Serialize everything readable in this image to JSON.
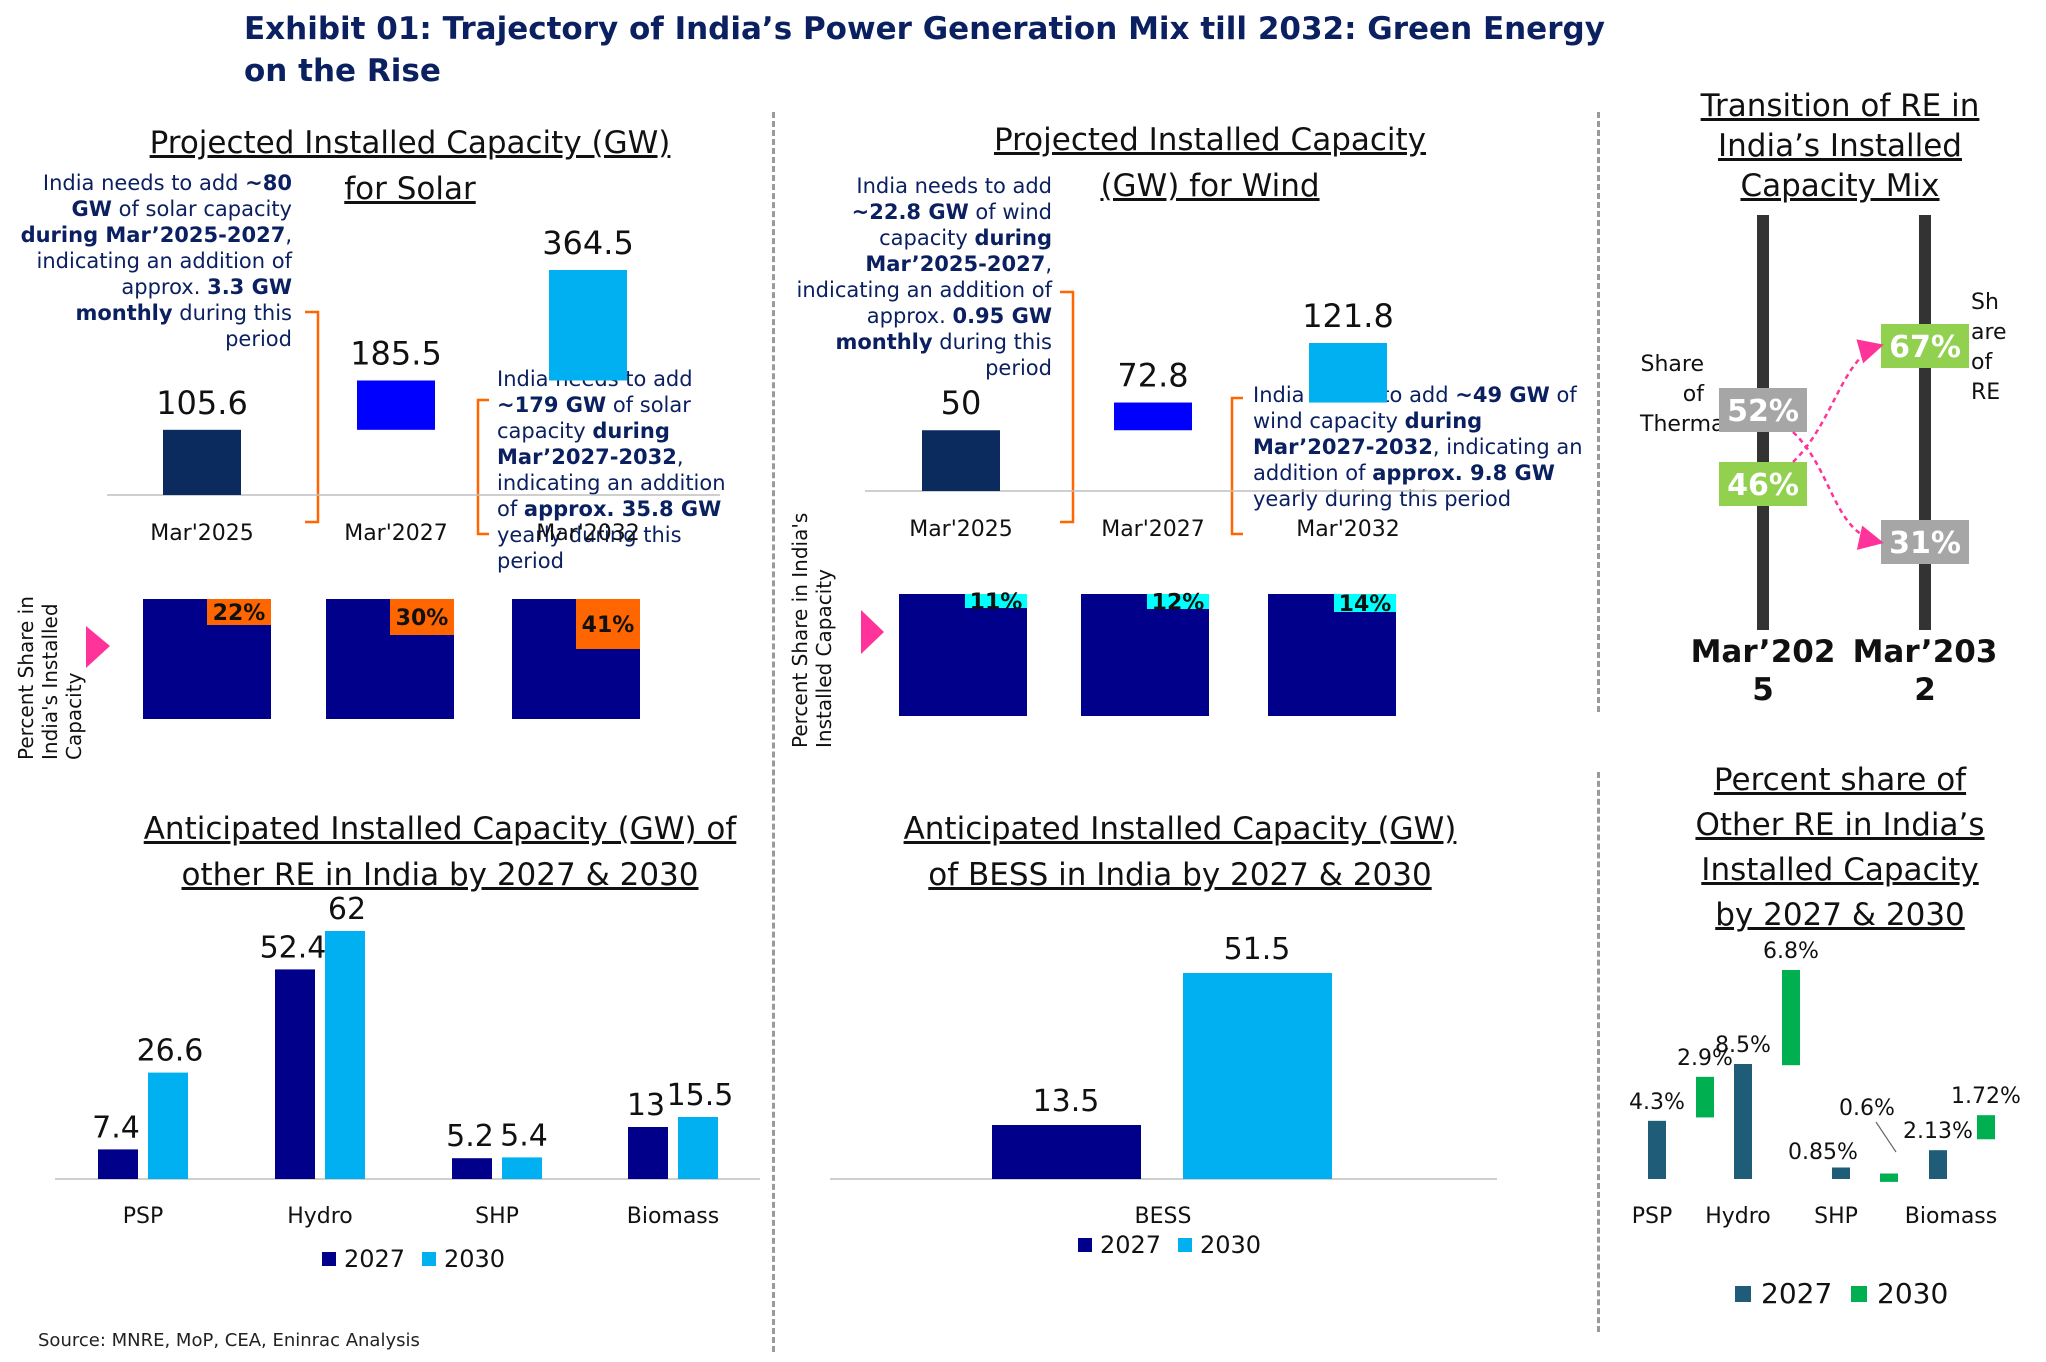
{
  "exhibit_title": "Exhibit 01: Trajectory of India’s Power Generation Mix till 2032: Green Energy on the Rise",
  "source": "Source: MNRE, MoP, CEA, Eninrac Analysis",
  "side_label": "Percent Share in India's Installed Capacity",
  "notes": {
    "solar_a": [
      "India needs to add ",
      "~80 GW",
      " of solar capacity ",
      "during Mar’2025-2027",
      ", indicating an addition of approx. ",
      "3.3 GW monthly",
      " during this period"
    ],
    "solar_b": [
      "India needs to add ",
      "~179 GW",
      " of solar capacity ",
      "during Mar’2027-2032",
      ", indicating an addition of ",
      "approx. 35.8 GW",
      " yearly during this period"
    ],
    "wind_a": [
      "India needs to add ",
      "~22.8 GW",
      " of wind capacity ",
      "during Mar’2025-2027",
      ", indicating an addition of approx. ",
      "0.95 GW monthly",
      " during this period"
    ],
    "wind_b": [
      "India needs to add ",
      "~49 GW",
      " of wind capacity ",
      "during Mar’2027-2032",
      ", indicating an addition of ",
      "approx. 9.8 GW",
      " yearly during this period"
    ]
  },
  "colors": {
    "navy": "#0b2a5e",
    "blue": "#0000ff",
    "sky": "#00b0f0",
    "darkblue": "#00008b",
    "orange": "#ff6600",
    "cyan": "#00ffff",
    "green": "#92d050",
    "grey": "#a6a6a6",
    "teal": "#1f5c78",
    "brightgreen": "#00b050",
    "pink": "#ff3399"
  },
  "chart_data": [
    {
      "type": "bar",
      "title": "Projected Installed Capacity (GW) for Solar",
      "categories": [
        "Mar'2025",
        "Mar'2027",
        "Mar'2032"
      ],
      "values": [
        105.6,
        185.5,
        364.5
      ],
      "shares": [
        "22%",
        "30%",
        "41%"
      ]
    },
    {
      "type": "bar",
      "title": "Projected Installed Capacity (GW) for Wind",
      "categories": [
        "Mar'2025",
        "Mar'2027",
        "Mar'2032"
      ],
      "values": [
        50,
        72.8,
        121.8
      ],
      "shares": [
        "11%",
        "12%",
        "14%"
      ]
    },
    {
      "type": "line",
      "title": "Transition of RE in India’s Installed Capacity Mix",
      "categories": [
        "Mar’2025",
        "Mar’2032"
      ],
      "series": [
        {
          "name": "Share of Thermal",
          "values": [
            52,
            31
          ],
          "labels": [
            "52%",
            "31%"
          ]
        },
        {
          "name": "Share of RE",
          "values": [
            46,
            67
          ],
          "labels": [
            "46%",
            "67%"
          ]
        }
      ]
    },
    {
      "type": "bar",
      "title": "Anticipated Installed Capacity (GW) of other RE in India by 2027 & 2030",
      "categories": [
        "PSP",
        "Hydro",
        "SHP",
        "Biomass"
      ],
      "series": [
        {
          "name": "2027",
          "values": [
            7.4,
            52.4,
            5.2,
            13
          ]
        },
        {
          "name": "2030",
          "values": [
            26.6,
            62,
            5.4,
            15.5
          ]
        }
      ]
    },
    {
      "type": "bar",
      "title": "Anticipated Installed Capacity (GW) of BESS in India by 2027 & 2030",
      "categories": [
        "BESS"
      ],
      "series": [
        {
          "name": "2027",
          "values": [
            13.5
          ]
        },
        {
          "name": "2030",
          "values": [
            51.5
          ]
        }
      ]
    },
    {
      "type": "bar",
      "title": "Percent share of Other RE in India’s Installed Capacity by 2027 & 2030",
      "categories": [
        "PSP",
        "Hydro",
        "SHP",
        "Biomass"
      ],
      "series": [
        {
          "name": "2027",
          "values": [
            4.3,
            8.5,
            0.85,
            2.13
          ],
          "labels": [
            "4.3%",
            "8.5%",
            "0.85%",
            "2.13%"
          ]
        },
        {
          "name": "2030",
          "values": [
            2.9,
            6.8,
            0.6,
            1.72
          ],
          "labels": [
            "2.9%",
            "6.8%",
            "0.6%",
            "1.72%"
          ]
        }
      ]
    }
  ]
}
